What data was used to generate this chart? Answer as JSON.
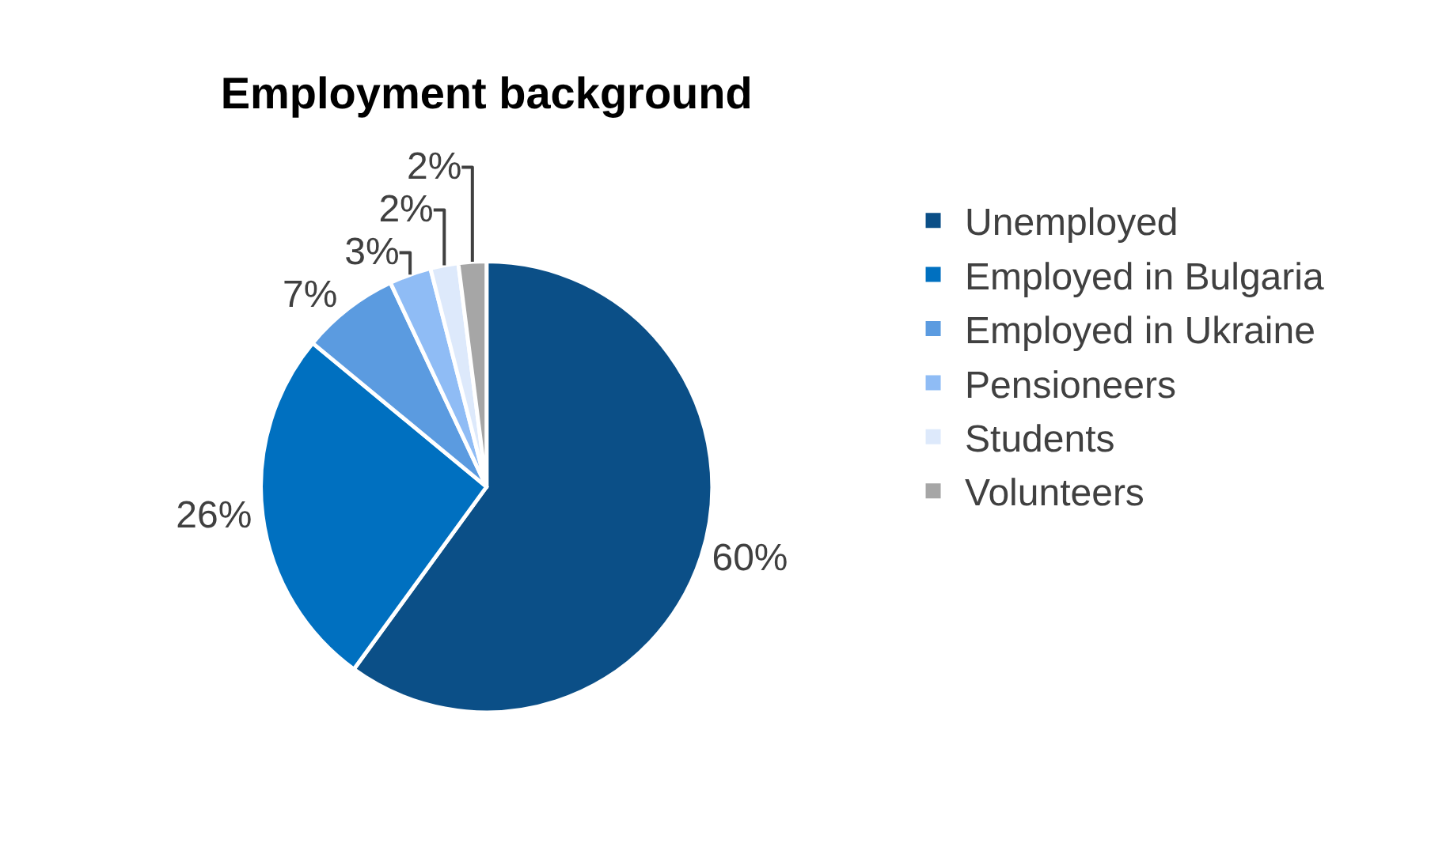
{
  "chart_data": {
    "type": "pie",
    "title": "Employment background",
    "categories": [
      "Unemployed",
      "Employed in Bulgaria",
      "Employed in Ukraine",
      "Pensioneers",
      "Students",
      "Volunteers"
    ],
    "values": [
      60,
      26,
      7,
      3,
      2,
      2
    ],
    "colors": [
      "#0b4f87",
      "#0070c0",
      "#5b9be0",
      "#8fbcf5",
      "#dde9fb",
      "#a6a6a6"
    ],
    "value_labels": [
      "60%",
      "26%",
      "7%",
      "3%",
      "2%",
      "2%"
    ],
    "legend": "right"
  }
}
